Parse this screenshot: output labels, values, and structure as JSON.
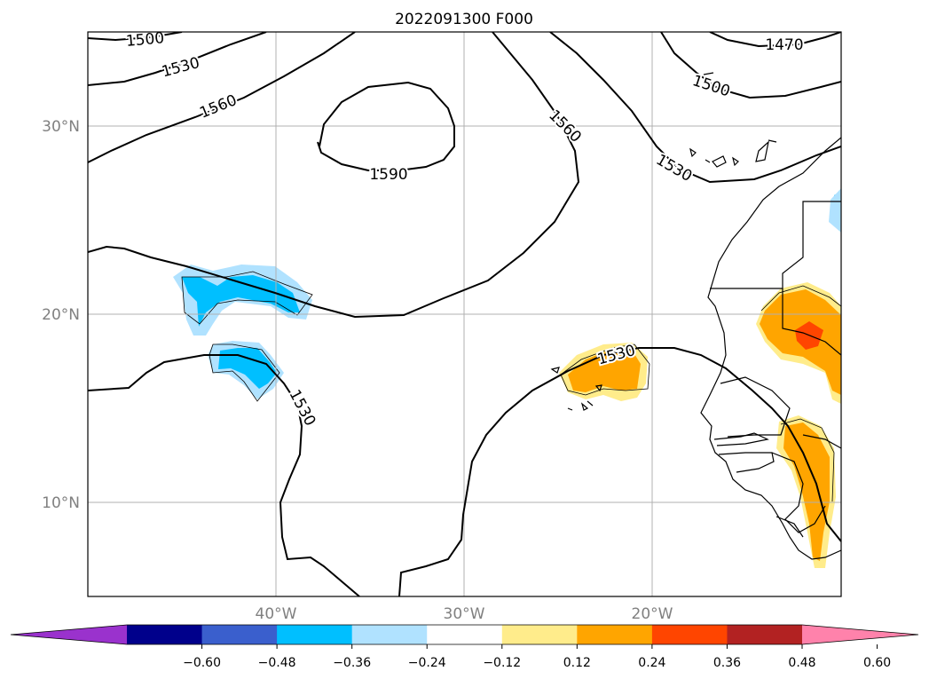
{
  "title": "2022091300 F000",
  "lat_labels": [
    {
      "text": "30°N",
      "lat": 30
    },
    {
      "text": "20°N",
      "lat": 20
    },
    {
      "text": "10°N",
      "lat": 10
    }
  ],
  "lon_labels": [
    {
      "text": "40°W",
      "lon": -40
    },
    {
      "text": "30°W",
      "lon": -30
    },
    {
      "text": "20°W",
      "lon": -20
    }
  ],
  "contour_labels": [
    "1500",
    "1530",
    "1560",
    "1470",
    "1500",
    "1590",
    "1560",
    "1530",
    "1530",
    "1530"
  ],
  "colorbar": {
    "ticks": [
      "−0.60",
      "−0.48",
      "−0.36",
      "−0.24",
      "−0.12",
      "0.12",
      "0.24",
      "0.36",
      "0.48",
      "0.60"
    ],
    "colors": [
      "#9a32cd",
      "#00008b",
      "#3a5fcd",
      "#00bfff",
      "#b0e2ff",
      "#ffffff",
      "#ffec8b",
      "#ffa500",
      "#ff4500",
      "#b22222",
      "#ff82ab"
    ]
  },
  "colors": {
    "light_blue": "#b0e2ff",
    "blue": "#00bfff",
    "yellow": "#ffec8b",
    "orange": "#ffa500",
    "red_orange": "#ff4500",
    "grid": "#b0b0b0",
    "tick_text": "#808080"
  }
}
